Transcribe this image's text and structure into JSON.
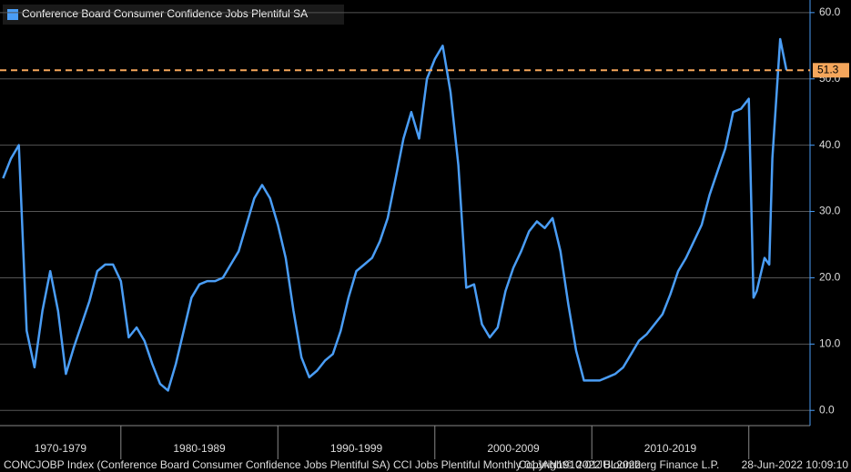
{
  "chart_data": {
    "type": "line",
    "legend": "Conference Board Consumer Confidence Jobs Plentiful SA",
    "series": [
      {
        "name": "Conference Board Consumer Confidence Jobs Plentiful SA",
        "color": "#4a9df5",
        "x": [
          1972.5,
          1973.0,
          1973.5,
          1974.0,
          1974.5,
          1975.0,
          1975.5,
          1976.0,
          1976.5,
          1977.0,
          1977.5,
          1978.0,
          1978.5,
          1979.0,
          1979.5,
          1980.0,
          1980.5,
          1981.0,
          1981.5,
          1982.0,
          1982.5,
          1983.0,
          1983.5,
          1984.0,
          1984.5,
          1985.0,
          1985.5,
          1986.0,
          1986.5,
          1987.0,
          1987.5,
          1988.0,
          1988.5,
          1989.0,
          1989.5,
          1990.0,
          1990.5,
          1991.0,
          1991.5,
          1992.0,
          1992.5,
          1993.0,
          1993.5,
          1994.0,
          1994.5,
          1995.0,
          1995.5,
          1996.0,
          1996.5,
          1997.0,
          1997.5,
          1998.0,
          1998.5,
          1999.0,
          1999.5,
          2000.0,
          2000.5,
          2001.0,
          2001.5,
          2002.0,
          2002.5,
          2003.0,
          2003.5,
          2004.0,
          2004.5,
          2005.0,
          2005.5,
          2006.0,
          2006.5,
          2007.0,
          2007.5,
          2008.0,
          2008.5,
          2009.0,
          2009.5,
          2010.0,
          2010.5,
          2011.0,
          2011.5,
          2012.0,
          2012.5,
          2013.0,
          2013.5,
          2014.0,
          2014.5,
          2015.0,
          2015.5,
          2016.0,
          2016.5,
          2017.0,
          2017.5,
          2018.0,
          2018.5,
          2019.0,
          2019.5,
          2020.0,
          2020.3,
          2020.5,
          2021.0,
          2021.3,
          2021.5,
          2022.0,
          2022.4
        ],
        "values": [
          35,
          38,
          40,
          12,
          6.5,
          15,
          21,
          15,
          5.5,
          9.5,
          13,
          16.5,
          21,
          22,
          22,
          19.5,
          11,
          12.5,
          10.5,
          7,
          4,
          3,
          7,
          12,
          17,
          19,
          19.5,
          19.5,
          20,
          22,
          24,
          28,
          32,
          34,
          32,
          28,
          23,
          15,
          8,
          5,
          6,
          7.5,
          8.5,
          12,
          17,
          21,
          22,
          23,
          25.5,
          29,
          35,
          41,
          45,
          41,
          50,
          53,
          55,
          48,
          37,
          18.5,
          19,
          13,
          11,
          12.5,
          18,
          21.5,
          24,
          27,
          28.5,
          27.5,
          29,
          24,
          16,
          9,
          4.5,
          4.5,
          4.5,
          5,
          5.5,
          6.5,
          8.5,
          10.5,
          11.5,
          13,
          14.5,
          17.5,
          21,
          23,
          25.5,
          28,
          32.5,
          36,
          39.5,
          45,
          45.5,
          47,
          17,
          18,
          23,
          22,
          38,
          56,
          51.3
        ]
      }
    ],
    "last_value": {
      "value": 51.3,
      "label": "51.3",
      "color": "#f5a65b"
    },
    "xlim": [
      1972.3,
      2023.9
    ],
    "xticks": [
      1980,
      1990,
      2000,
      2010,
      2020
    ],
    "x_bands": [
      "1970-1979",
      "1980-1989",
      "1990-1999",
      "2000-2009",
      "2010-2019"
    ],
    "ylim": [
      -2.3,
      61.9
    ],
    "yticks": [
      {
        "value": 0,
        "label": "0.0"
      },
      {
        "value": 10,
        "label": "10.0"
      },
      {
        "value": 20,
        "label": "20.0"
      },
      {
        "value": 30,
        "label": "30.0"
      },
      {
        "value": 40,
        "label": "40.0"
      },
      {
        "value": 50,
        "label": "50.0"
      },
      {
        "value": 60,
        "label": "60.0"
      }
    ],
    "grid": true,
    "footer": {
      "left": "CONCJOBP Index (Conference Board Consumer Confidence Jobs Plentiful SA) CCI Jobs Plentiful  Monthly 01JAN1910-01JUL2022",
      "center": "Copyright© 2022 Bloomberg Finance L.P.",
      "right": "28-Jun-2022 10:09:10"
    }
  }
}
